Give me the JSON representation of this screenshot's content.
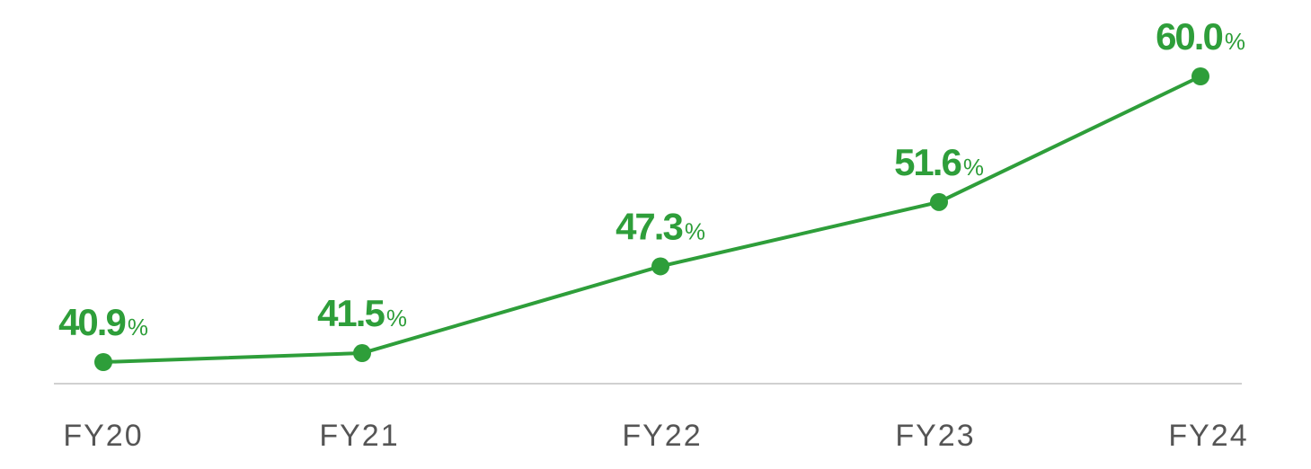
{
  "chart_data": {
    "type": "line",
    "categories": [
      "FY20",
      "FY21",
      "FY22",
      "FY23",
      "FY24"
    ],
    "series": [
      {
        "color": "#2e9e3a",
        "values": [
          40.9,
          41.5,
          47.3,
          51.6,
          60.0
        ],
        "value_labels": [
          "40.9%",
          "41.5%",
          "47.3%",
          "51.6%",
          "60.0%"
        ]
      }
    ]
  }
}
